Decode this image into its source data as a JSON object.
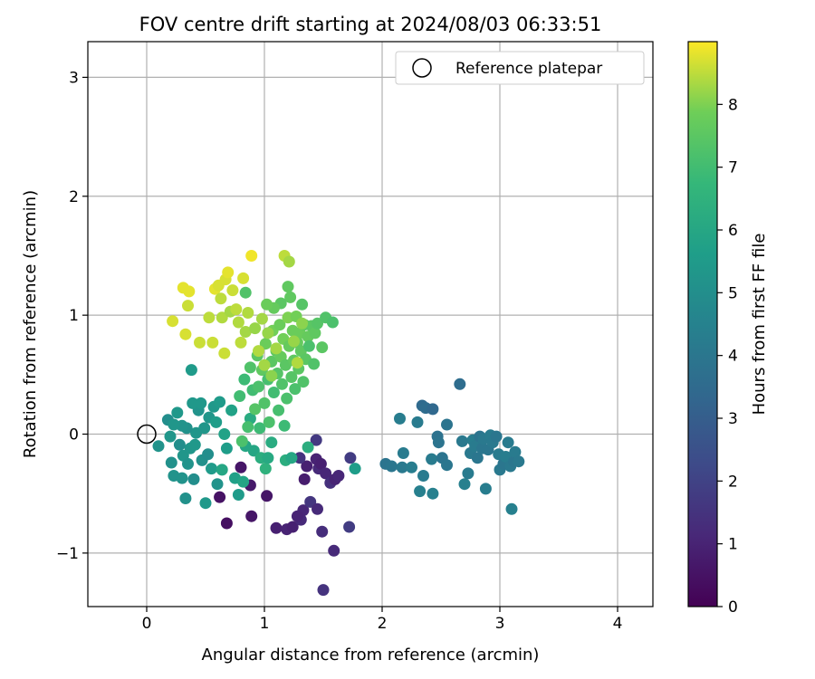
{
  "chart_data": {
    "type": "scatter",
    "title": "FOV centre drift starting at 2024/08/03 06:33:51",
    "xlabel": "Angular distance from reference (arcmin)",
    "ylabel": "Rotation from reference (arcmin)",
    "xlim": [
      -0.5,
      4.3
    ],
    "ylim": [
      -1.45,
      3.3
    ],
    "xticks": [
      0,
      1,
      2,
      3,
      4
    ],
    "yticks": [
      -1,
      0,
      1,
      2,
      3
    ],
    "grid": true,
    "legend": {
      "position": "top-right",
      "entries": [
        "Reference platepar"
      ]
    },
    "colorbar": {
      "label": "Hours from first FF file",
      "min": 0,
      "max": 9,
      "ticks": [
        0,
        1,
        2,
        3,
        4,
        5,
        6,
        7,
        8
      ],
      "colormap": "viridis"
    },
    "reference_point": {
      "x": 0,
      "y": 0
    },
    "points": [
      {
        "x": 0.62,
        "y": -0.53,
        "h": 0.5
      },
      {
        "x": 0.68,
        "y": -0.75,
        "h": 0.4
      },
      {
        "x": 0.8,
        "y": -0.28,
        "h": 0.6
      },
      {
        "x": 0.88,
        "y": -0.43,
        "h": 0.7
      },
      {
        "x": 0.89,
        "y": -0.69,
        "h": 0.6
      },
      {
        "x": 1.02,
        "y": -0.52,
        "h": 0.6
      },
      {
        "x": 1.1,
        "y": -0.79,
        "h": 0.9
      },
      {
        "x": 1.19,
        "y": -0.8,
        "h": 1.0
      },
      {
        "x": 1.24,
        "y": -0.78,
        "h": 0.9
      },
      {
        "x": 1.31,
        "y": -0.72,
        "h": 1.2
      },
      {
        "x": 1.33,
        "y": -0.64,
        "h": 1.1
      },
      {
        "x": 1.28,
        "y": -0.69,
        "h": 1.0
      },
      {
        "x": 1.39,
        "y": -0.57,
        "h": 1.6
      },
      {
        "x": 1.45,
        "y": -0.63,
        "h": 1.2
      },
      {
        "x": 1.49,
        "y": -0.82,
        "h": 1.3
      },
      {
        "x": 1.5,
        "y": -1.31,
        "h": 1.5
      },
      {
        "x": 1.59,
        "y": -0.98,
        "h": 1.2
      },
      {
        "x": 1.72,
        "y": -0.78,
        "h": 1.8
      },
      {
        "x": 1.34,
        "y": -0.38,
        "h": 0.8
      },
      {
        "x": 1.36,
        "y": -0.27,
        "h": 0.9
      },
      {
        "x": 1.44,
        "y": -0.21,
        "h": 1.0
      },
      {
        "x": 1.46,
        "y": -0.29,
        "h": 1.2
      },
      {
        "x": 1.48,
        "y": -0.25,
        "h": 0.9
      },
      {
        "x": 1.52,
        "y": -0.33,
        "h": 1.1
      },
      {
        "x": 1.56,
        "y": -0.41,
        "h": 1.4
      },
      {
        "x": 1.6,
        "y": -0.38,
        "h": 1.0
      },
      {
        "x": 1.63,
        "y": -0.35,
        "h": 1.1
      },
      {
        "x": 1.73,
        "y": -0.2,
        "h": 1.8
      },
      {
        "x": 1.44,
        "y": -0.05,
        "h": 1.7
      },
      {
        "x": 1.3,
        "y": -0.2,
        "h": 1.5
      },
      {
        "x": 2.03,
        "y": -0.25,
        "h": 3.9
      },
      {
        "x": 2.08,
        "y": -0.27,
        "h": 4.0
      },
      {
        "x": 2.15,
        "y": 0.13,
        "h": 4.3
      },
      {
        "x": 2.17,
        "y": -0.28,
        "h": 4.1
      },
      {
        "x": 2.18,
        "y": -0.16,
        "h": 4.2
      },
      {
        "x": 2.25,
        "y": -0.28,
        "h": 4.3
      },
      {
        "x": 2.3,
        "y": 0.1,
        "h": 4.2
      },
      {
        "x": 2.32,
        "y": -0.48,
        "h": 4.4
      },
      {
        "x": 2.35,
        "y": -0.35,
        "h": 4.2
      },
      {
        "x": 2.34,
        "y": 0.24,
        "h": 3.5
      },
      {
        "x": 2.37,
        "y": 0.22,
        "h": 3.6
      },
      {
        "x": 2.43,
        "y": 0.21,
        "h": 3.4
      },
      {
        "x": 2.43,
        "y": -0.5,
        "h": 4.4
      },
      {
        "x": 2.42,
        "y": -0.21,
        "h": 4.2
      },
      {
        "x": 2.47,
        "y": -0.02,
        "h": 3.8
      },
      {
        "x": 2.48,
        "y": -0.07,
        "h": 3.9
      },
      {
        "x": 2.51,
        "y": -0.2,
        "h": 3.9
      },
      {
        "x": 2.55,
        "y": -0.26,
        "h": 4.0
      },
      {
        "x": 2.55,
        "y": 0.08,
        "h": 3.9
      },
      {
        "x": 2.66,
        "y": 0.42,
        "h": 3.6
      },
      {
        "x": 2.68,
        "y": -0.06,
        "h": 4.1
      },
      {
        "x": 2.7,
        "y": -0.42,
        "h": 4.4
      },
      {
        "x": 2.73,
        "y": -0.33,
        "h": 4.2
      },
      {
        "x": 2.75,
        "y": -0.16,
        "h": 4.1
      },
      {
        "x": 2.77,
        "y": -0.05,
        "h": 4.3
      },
      {
        "x": 2.79,
        "y": -0.1,
        "h": 4.2
      },
      {
        "x": 2.81,
        "y": -0.2,
        "h": 4.0
      },
      {
        "x": 2.83,
        "y": -0.02,
        "h": 3.9
      },
      {
        "x": 2.85,
        "y": -0.12,
        "h": 4.0
      },
      {
        "x": 2.86,
        "y": -0.04,
        "h": 4.1
      },
      {
        "x": 2.88,
        "y": -0.46,
        "h": 4.3
      },
      {
        "x": 2.9,
        "y": -0.13,
        "h": 4.0
      },
      {
        "x": 2.92,
        "y": -0.01,
        "h": 4.2
      },
      {
        "x": 2.94,
        "y": -0.07,
        "h": 4.1
      },
      {
        "x": 2.97,
        "y": -0.02,
        "h": 4.0
      },
      {
        "x": 2.99,
        "y": -0.17,
        "h": 4.2
      },
      {
        "x": 3.0,
        "y": -0.3,
        "h": 4.1
      },
      {
        "x": 3.03,
        "y": -0.25,
        "h": 4.0
      },
      {
        "x": 3.05,
        "y": -0.19,
        "h": 4.3
      },
      {
        "x": 3.07,
        "y": -0.07,
        "h": 4.2
      },
      {
        "x": 3.09,
        "y": -0.27,
        "h": 4.1
      },
      {
        "x": 3.1,
        "y": -0.63,
        "h": 4.4
      },
      {
        "x": 3.12,
        "y": -0.23,
        "h": 4.0
      },
      {
        "x": 3.13,
        "y": -0.15,
        "h": 4.2
      },
      {
        "x": 3.16,
        "y": -0.23,
        "h": 4.1
      },
      {
        "x": 0.1,
        "y": -0.1,
        "h": 5.2
      },
      {
        "x": 0.18,
        "y": 0.12,
        "h": 5.0
      },
      {
        "x": 0.2,
        "y": -0.02,
        "h": 5.3
      },
      {
        "x": 0.21,
        "y": -0.24,
        "h": 5.1
      },
      {
        "x": 0.23,
        "y": -0.35,
        "h": 5.2
      },
      {
        "x": 0.26,
        "y": 0.18,
        "h": 5.4
      },
      {
        "x": 0.28,
        "y": -0.09,
        "h": 5.0
      },
      {
        "x": 0.3,
        "y": -0.37,
        "h": 5.2
      },
      {
        "x": 0.31,
        "y": -0.18,
        "h": 5.3
      },
      {
        "x": 0.33,
        "y": -0.54,
        "h": 5.1
      },
      {
        "x": 0.35,
        "y": -0.25,
        "h": 5.2
      },
      {
        "x": 0.37,
        "y": -0.12,
        "h": 5.3
      },
      {
        "x": 0.38,
        "y": 0.54,
        "h": 5.5
      },
      {
        "x": 0.4,
        "y": -0.38,
        "h": 5.0
      },
      {
        "x": 0.41,
        "y": -0.09,
        "h": 5.4
      },
      {
        "x": 0.42,
        "y": 0.01,
        "h": 5.3
      },
      {
        "x": 0.44,
        "y": 0.2,
        "h": 5.2
      },
      {
        "x": 0.46,
        "y": 0.26,
        "h": 5.4
      },
      {
        "x": 0.47,
        "y": -0.22,
        "h": 5.1
      },
      {
        "x": 0.49,
        "y": 0.05,
        "h": 5.3
      },
      {
        "x": 0.5,
        "y": -0.58,
        "h": 5.4
      },
      {
        "x": 0.52,
        "y": -0.17,
        "h": 5.0
      },
      {
        "x": 0.53,
        "y": 0.14,
        "h": 5.3
      },
      {
        "x": 0.55,
        "y": -0.29,
        "h": 5.5
      },
      {
        "x": 0.57,
        "y": 0.23,
        "h": 5.4
      },
      {
        "x": 0.59,
        "y": 0.1,
        "h": 5.6
      },
      {
        "x": 0.6,
        "y": -0.42,
        "h": 5.2
      },
      {
        "x": 0.62,
        "y": 0.27,
        "h": 5.5
      },
      {
        "x": 0.64,
        "y": -0.3,
        "h": 6.0
      },
      {
        "x": 0.66,
        "y": 0.0,
        "h": 5.8
      },
      {
        "x": 0.68,
        "y": -0.12,
        "h": 5.6
      },
      {
        "x": 0.72,
        "y": 0.2,
        "h": 5.8
      },
      {
        "x": 0.75,
        "y": -0.37,
        "h": 5.7
      },
      {
        "x": 0.78,
        "y": -0.51,
        "h": 5.5
      },
      {
        "x": 0.82,
        "y": -0.4,
        "h": 5.9
      },
      {
        "x": 0.84,
        "y": -0.1,
        "h": 6.0
      },
      {
        "x": 0.88,
        "y": 0.13,
        "h": 6.2
      },
      {
        "x": 0.91,
        "y": -0.14,
        "h": 6.0
      },
      {
        "x": 0.97,
        "y": -0.2,
        "h": 6.3
      },
      {
        "x": 1.01,
        "y": -0.29,
        "h": 6.5
      },
      {
        "x": 1.03,
        "y": -0.2,
        "h": 6.1
      },
      {
        "x": 1.06,
        "y": -0.07,
        "h": 6.2
      },
      {
        "x": 1.18,
        "y": -0.22,
        "h": 6.3
      },
      {
        "x": 1.23,
        "y": -0.2,
        "h": 6.0
      },
      {
        "x": 1.37,
        "y": -0.11,
        "h": 6.3
      },
      {
        "x": 1.77,
        "y": -0.29,
        "h": 5.6
      },
      {
        "x": 0.34,
        "y": 0.05,
        "h": 5.1
      },
      {
        "x": 0.3,
        "y": 0.07,
        "h": 5.2
      },
      {
        "x": 0.23,
        "y": 0.08,
        "h": 5.3
      },
      {
        "x": 0.39,
        "y": 0.26,
        "h": 5.4
      },
      {
        "x": 0.79,
        "y": 0.32,
        "h": 7.0
      },
      {
        "x": 0.81,
        "y": -0.06,
        "h": 7.2
      },
      {
        "x": 0.83,
        "y": 0.46,
        "h": 6.9
      },
      {
        "x": 0.86,
        "y": 0.06,
        "h": 7.1
      },
      {
        "x": 0.88,
        "y": 0.56,
        "h": 7.3
      },
      {
        "x": 0.9,
        "y": 0.37,
        "h": 7.0
      },
      {
        "x": 0.92,
        "y": 0.21,
        "h": 7.4
      },
      {
        "x": 0.94,
        "y": 0.66,
        "h": 7.5
      },
      {
        "x": 0.95,
        "y": 0.4,
        "h": 7.2
      },
      {
        "x": 0.96,
        "y": 0.05,
        "h": 6.9
      },
      {
        "x": 0.98,
        "y": 0.54,
        "h": 7.6
      },
      {
        "x": 1.0,
        "y": 0.26,
        "h": 7.3
      },
      {
        "x": 1.01,
        "y": 0.76,
        "h": 7.8
      },
      {
        "x": 1.03,
        "y": 0.46,
        "h": 7.1
      },
      {
        "x": 1.04,
        "y": 0.1,
        "h": 7.2
      },
      {
        "x": 1.06,
        "y": 0.61,
        "h": 7.5
      },
      {
        "x": 1.07,
        "y": 0.87,
        "h": 7.9
      },
      {
        "x": 1.08,
        "y": 0.35,
        "h": 7.0
      },
      {
        "x": 1.1,
        "y": 0.7,
        "h": 7.6
      },
      {
        "x": 1.11,
        "y": 0.51,
        "h": 7.4
      },
      {
        "x": 1.12,
        "y": 0.2,
        "h": 7.1
      },
      {
        "x": 1.13,
        "y": 0.92,
        "h": 7.8
      },
      {
        "x": 1.14,
        "y": 0.65,
        "h": 7.7
      },
      {
        "x": 1.15,
        "y": 0.42,
        "h": 7.3
      },
      {
        "x": 1.16,
        "y": 0.8,
        "h": 7.9
      },
      {
        "x": 1.17,
        "y": 0.07,
        "h": 6.9
      },
      {
        "x": 1.18,
        "y": 0.58,
        "h": 7.5
      },
      {
        "x": 1.19,
        "y": 0.3,
        "h": 7.2
      },
      {
        "x": 1.2,
        "y": 0.98,
        "h": 8.0
      },
      {
        "x": 1.21,
        "y": 0.74,
        "h": 7.7
      },
      {
        "x": 1.22,
        "y": 1.15,
        "h": 7.6
      },
      {
        "x": 1.23,
        "y": 0.48,
        "h": 7.4
      },
      {
        "x": 1.24,
        "y": 0.87,
        "h": 7.8
      },
      {
        "x": 1.25,
        "y": 0.62,
        "h": 7.6
      },
      {
        "x": 1.26,
        "y": 0.38,
        "h": 7.2
      },
      {
        "x": 1.27,
        "y": 0.99,
        "h": 7.9
      },
      {
        "x": 1.28,
        "y": 0.77,
        "h": 7.7
      },
      {
        "x": 1.29,
        "y": 0.55,
        "h": 7.5
      },
      {
        "x": 1.3,
        "y": 0.85,
        "h": 7.8
      },
      {
        "x": 1.31,
        "y": 0.7,
        "h": 7.6
      },
      {
        "x": 1.32,
        "y": 1.09,
        "h": 7.4
      },
      {
        "x": 1.33,
        "y": 0.44,
        "h": 7.3
      },
      {
        "x": 1.34,
        "y": 0.92,
        "h": 7.6
      },
      {
        "x": 1.35,
        "y": 0.63,
        "h": 7.5
      },
      {
        "x": 1.37,
        "y": 0.82,
        "h": 7.7
      },
      {
        "x": 1.38,
        "y": 0.74,
        "h": 7.2
      },
      {
        "x": 1.4,
        "y": 0.91,
        "h": 7.5
      },
      {
        "x": 1.42,
        "y": 0.59,
        "h": 7.3
      },
      {
        "x": 1.43,
        "y": 0.85,
        "h": 7.6
      },
      {
        "x": 1.45,
        "y": 0.93,
        "h": 7.4
      },
      {
        "x": 1.49,
        "y": 0.73,
        "h": 7.5
      },
      {
        "x": 1.52,
        "y": 0.98,
        "h": 7.3
      },
      {
        "x": 1.58,
        "y": 0.94,
        "h": 7.2
      },
      {
        "x": 1.2,
        "y": 1.24,
        "h": 7.6
      },
      {
        "x": 1.14,
        "y": 1.1,
        "h": 7.5
      },
      {
        "x": 1.08,
        "y": 1.06,
        "h": 7.7
      },
      {
        "x": 0.84,
        "y": 1.19,
        "h": 7.3
      },
      {
        "x": 1.02,
        "y": 1.09,
        "h": 7.8
      },
      {
        "x": 0.22,
        "y": 0.95,
        "h": 8.7
      },
      {
        "x": 0.31,
        "y": 1.23,
        "h": 8.8
      },
      {
        "x": 0.33,
        "y": 0.84,
        "h": 8.7
      },
      {
        "x": 0.35,
        "y": 1.08,
        "h": 8.6
      },
      {
        "x": 0.36,
        "y": 1.2,
        "h": 8.8
      },
      {
        "x": 0.45,
        "y": 0.77,
        "h": 8.6
      },
      {
        "x": 0.53,
        "y": 0.98,
        "h": 8.5
      },
      {
        "x": 0.56,
        "y": 0.77,
        "h": 8.6
      },
      {
        "x": 0.58,
        "y": 1.22,
        "h": 8.8
      },
      {
        "x": 0.61,
        "y": 1.25,
        "h": 8.7
      },
      {
        "x": 0.63,
        "y": 1.14,
        "h": 8.5
      },
      {
        "x": 0.64,
        "y": 0.98,
        "h": 8.4
      },
      {
        "x": 0.66,
        "y": 0.68,
        "h": 8.6
      },
      {
        "x": 0.67,
        "y": 1.3,
        "h": 8.7
      },
      {
        "x": 0.69,
        "y": 1.36,
        "h": 8.8
      },
      {
        "x": 0.71,
        "y": 1.03,
        "h": 8.3
      },
      {
        "x": 0.73,
        "y": 1.21,
        "h": 8.6
      },
      {
        "x": 0.76,
        "y": 1.05,
        "h": 8.5
      },
      {
        "x": 0.78,
        "y": 0.94,
        "h": 8.4
      },
      {
        "x": 0.8,
        "y": 0.77,
        "h": 8.5
      },
      {
        "x": 0.82,
        "y": 1.31,
        "h": 8.7
      },
      {
        "x": 0.84,
        "y": 0.86,
        "h": 8.3
      },
      {
        "x": 0.86,
        "y": 1.02,
        "h": 8.4
      },
      {
        "x": 0.89,
        "y": 1.5,
        "h": 8.9
      },
      {
        "x": 0.92,
        "y": 0.89,
        "h": 8.2
      },
      {
        "x": 0.95,
        "y": 0.7,
        "h": 8.4
      },
      {
        "x": 0.98,
        "y": 0.97,
        "h": 8.3
      },
      {
        "x": 1.0,
        "y": 0.58,
        "h": 8.3
      },
      {
        "x": 1.03,
        "y": 0.85,
        "h": 8.2
      },
      {
        "x": 1.06,
        "y": 0.49,
        "h": 8.1
      },
      {
        "x": 1.1,
        "y": 0.72,
        "h": 8.3
      },
      {
        "x": 1.17,
        "y": 1.5,
        "h": 8.5
      },
      {
        "x": 1.21,
        "y": 1.45,
        "h": 8.3
      },
      {
        "x": 1.25,
        "y": 0.78,
        "h": 8.2
      },
      {
        "x": 1.28,
        "y": 0.6,
        "h": 8.4
      },
      {
        "x": 1.32,
        "y": 0.93,
        "h": 8.1
      }
    ]
  }
}
